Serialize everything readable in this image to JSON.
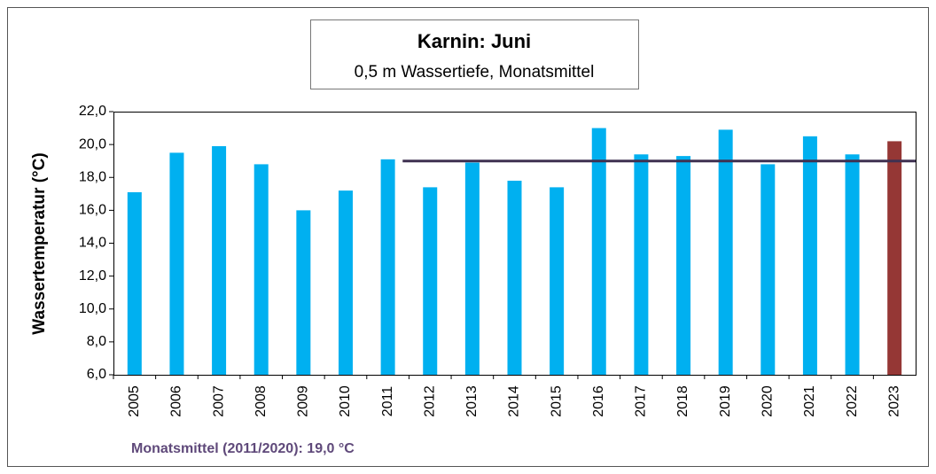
{
  "chart_data": {
    "type": "bar",
    "title": "Karnin: Juni",
    "subtitle": "0,5 m Wassertiefe, Monatsmittel",
    "y_label": "Wassertemperatur (°C)",
    "annotation": "Monatsmittel (2011/2020): 19,0 °C",
    "categories": [
      "2005",
      "2006",
      "2007",
      "2008",
      "2009",
      "2010",
      "2011",
      "2012",
      "2013",
      "2014",
      "2015",
      "2016",
      "2017",
      "2018",
      "2019",
      "2020",
      "2021",
      "2022",
      "2023"
    ],
    "values": [
      17.1,
      19.5,
      19.9,
      18.8,
      16.0,
      17.2,
      19.1,
      17.4,
      18.9,
      17.8,
      17.4,
      21.0,
      19.4,
      19.3,
      20.9,
      18.8,
      20.5,
      19.4,
      20.2
    ],
    "colors": [
      "#00b0f0",
      "#00b0f0",
      "#00b0f0",
      "#00b0f0",
      "#00b0f0",
      "#00b0f0",
      "#00b0f0",
      "#00b0f0",
      "#00b0f0",
      "#00b0f0",
      "#00b0f0",
      "#00b0f0",
      "#00b0f0",
      "#00b0f0",
      "#00b0f0",
      "#00b0f0",
      "#00b0f0",
      "#00b0f0",
      "#953735"
    ],
    "mean_line": {
      "value": 19.0,
      "color": "#3f3151"
    },
    "ylim": [
      6,
      22
    ],
    "yticks": [
      {
        "value": 6,
        "label": "6,0"
      },
      {
        "value": 8,
        "label": "8,0"
      },
      {
        "value": 10,
        "label": "10,0"
      },
      {
        "value": 12,
        "label": "12,0"
      },
      {
        "value": 14,
        "label": "14,0"
      },
      {
        "value": 16,
        "label": "16,0"
      },
      {
        "value": 18,
        "label": "18,0"
      },
      {
        "value": 20,
        "label": "20,0"
      },
      {
        "value": 22,
        "label": "22,0"
      }
    ],
    "grid": false
  }
}
